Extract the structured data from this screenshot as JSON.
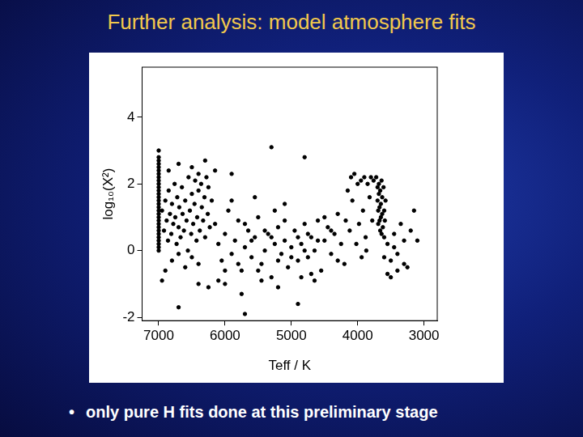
{
  "slide": {
    "title": "Further analysis: model atmosphere fits",
    "bullets": [
      "only pure H fits done at this preliminary stage"
    ]
  },
  "chart_data": {
    "type": "scatter",
    "x_label": "Teff / K",
    "y_label": "log₁₀(X²)",
    "xlim": [
      7250,
      2800
    ],
    "xticks": [
      7000,
      6000,
      5000,
      4000,
      3000
    ],
    "ylim": [
      -2.1,
      5.5
    ],
    "yticks": [
      -2,
      0,
      2,
      4
    ],
    "grid": false,
    "color": "#000000",
    "marker": "circle",
    "x": [
      7000,
      7000,
      7000,
      7000,
      7000,
      7000,
      7000,
      7000,
      7000,
      7000,
      7000,
      7000,
      7000,
      7000,
      7000,
      7000,
      7000,
      7000,
      7000,
      7000,
      7000,
      7000,
      7000,
      7000,
      7000,
      7000,
      7000,
      7000,
      7000,
      7000,
      6950,
      6920,
      6900,
      6880,
      6860,
      6850,
      6830,
      6810,
      6800,
      6780,
      6760,
      6750,
      6730,
      6720,
      6700,
      6690,
      6670,
      6650,
      6640,
      6620,
      6600,
      6580,
      6560,
      6550,
      6530,
      6510,
      6500,
      6480,
      6460,
      6450,
      6430,
      6420,
      6400,
      6380,
      6360,
      6350,
      6330,
      6310,
      6300,
      6280,
      6260,
      6250,
      6230,
      6900,
      6800,
      6700,
      6600,
      6500,
      6950,
      6400,
      6850,
      6700,
      6500,
      6400,
      6300,
      6200,
      6150,
      6100,
      6050,
      6000,
      5950,
      5900,
      5850,
      5800,
      5750,
      5700,
      5650,
      5600,
      5550,
      5500,
      5450,
      5400,
      5350,
      5300,
      5250,
      5200,
      5150,
      5100,
      5050,
      5000,
      4950,
      4900,
      4850,
      4800,
      4750,
      4700,
      4650,
      4600,
      4550,
      4500,
      4450,
      4400,
      4350,
      4300,
      4250,
      4200,
      6100,
      6000,
      5900,
      5800,
      5700,
      5600,
      5500,
      5400,
      5300,
      5200,
      5100,
      5000,
      4900,
      4800,
      4700,
      4600,
      4500,
      4400,
      4300,
      5750,
      6000,
      5450,
      5200,
      4850,
      4650,
      5900,
      6150,
      5300,
      4800,
      5550,
      5100,
      5700,
      4900,
      6250,
      6700,
      6400,
      5250,
      4750,
      4150,
      4100,
      4080,
      4050,
      4000,
      3980,
      3950,
      3920,
      3900,
      3880,
      3850,
      3820,
      3800,
      3780,
      3760,
      4120,
      4020,
      3940,
      3870,
      4180,
      3720,
      3700,
      3700,
      3690,
      3690,
      3680,
      3680,
      3670,
      3670,
      3660,
      3660,
      3650,
      3650,
      3640,
      3640,
      3630,
      3630,
      3620,
      3610,
      3600,
      3600,
      3590,
      3580,
      3550,
      3500,
      3450,
      3400,
      3350,
      3300,
      3250,
      3200,
      3150,
      3100,
      3500,
      3400,
      3300,
      3600,
      3550,
      3450
    ],
    "values": [
      0.0,
      0.1,
      0.2,
      0.3,
      0.4,
      0.5,
      0.6,
      0.7,
      0.8,
      0.9,
      1.0,
      1.1,
      1.2,
      1.3,
      1.4,
      1.5,
      1.6,
      1.7,
      1.8,
      1.9,
      2.0,
      2.1,
      2.2,
      2.3,
      2.4,
      2.5,
      2.6,
      2.7,
      2.8,
      3.0,
      1.2,
      0.6,
      1.5,
      0.9,
      0.3,
      1.8,
      1.1,
      0.5,
      1.4,
      0.8,
      2.0,
      1.0,
      0.2,
      1.6,
      0.7,
      1.3,
      0.4,
      1.9,
      1.1,
      0.6,
      1.5,
      0.9,
      0.0,
      2.2,
      1.2,
      0.5,
      1.7,
      0.8,
      1.4,
      2.1,
      0.3,
      1.0,
      1.8,
      0.6,
      2.0,
      1.3,
      0.9,
      1.6,
      0.4,
      2.2,
      1.1,
      1.9,
      0.7,
      -0.6,
      -0.3,
      -0.1,
      -0.5,
      -0.2,
      -0.9,
      -0.4,
      2.4,
      2.6,
      2.5,
      2.3,
      2.7,
      1.5,
      0.8,
      0.2,
      -0.3,
      0.5,
      1.2,
      -0.1,
      0.3,
      0.9,
      -0.6,
      0.1,
      0.6,
      -0.2,
      0.4,
      1.0,
      -0.4,
      0.0,
      0.5,
      -0.8,
      0.2,
      0.7,
      -0.1,
      0.3,
      -0.5,
      0.1,
      0.6,
      -0.3,
      0.2,
      0.8,
      -0.2,
      0.4,
      0.0,
      0.9,
      -0.6,
      0.3,
      0.7,
      -0.1,
      0.5,
      1.1,
      0.2,
      -0.4,
      -0.9,
      -0.6,
      1.5,
      -0.4,
      0.8,
      0.3,
      -0.6,
      0.6,
      0.4,
      -0.3,
      0.9,
      -0.2,
      0.4,
      0.0,
      -0.7,
      0.3,
      1.0,
      0.6,
      -0.3,
      -1.3,
      -1.0,
      -0.9,
      -1.1,
      -0.8,
      -0.9,
      2.3,
      2.4,
      3.1,
      2.8,
      1.6,
      1.4,
      -1.9,
      -1.6,
      -1.1,
      -1.7,
      -1.0,
      1.2,
      0.5,
      1.8,
      2.2,
      1.5,
      2.3,
      2.0,
      0.8,
      2.1,
      1.2,
      2.2,
      0.4,
      2.0,
      1.6,
      2.2,
      0.9,
      2.1,
      0.6,
      0.2,
      -0.2,
      0.0,
      0.9,
      2.2,
      1.9,
      1.5,
      1.2,
      0.8,
      2.0,
      1.7,
      1.3,
      0.9,
      0.6,
      1.8,
      1.4,
      1.0,
      0.5,
      2.1,
      1.6,
      1.1,
      0.7,
      1.9,
      1.2,
      0.4,
      0.9,
      1.5,
      0.2,
      -0.3,
      0.5,
      -0.1,
      0.8,
      0.3,
      -0.5,
      0.6,
      1.2,
      0.3,
      -0.8,
      -0.6,
      -0.4,
      -0.2,
      -0.7,
      0.1
    ]
  }
}
